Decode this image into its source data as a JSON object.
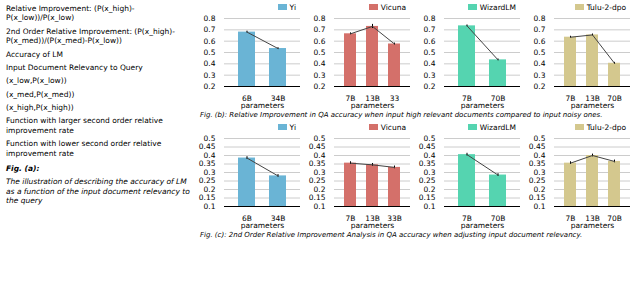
{
  "chart_data": [
    {
      "type": "text",
      "title": "Fig. (a):",
      "caption": "The illustration of describing the accuracy of LM as a function of the input document relevancy to the query",
      "annotations": [
        "Relative Improvement: (P(x_high)-P(x_low))/P(x_low)",
        "2nd Order Relative Improvement: (P(x_high)-P(x_med))/(P(x_med)-P(x_low))",
        "Accuracy of LM",
        "Input Document Relevancy to Query",
        "(x_low,P(x_low))",
        "(x_med,P(x_med))",
        "(x_high,P(x_high))",
        "Function with larger second order relative improvement rate",
        "Function with lower second order relative improvement rate"
      ]
    },
    {
      "type": "bar",
      "caption": "Fig. (b): Relative Improvement in QA accuracy when input high relevant documents compared to input noisy ones.",
      "categories": [
        "6B",
        "34B"
      ],
      "series": [
        {
          "name": "Yi",
          "color": "#6ab4d5",
          "values": [
            0.68,
            0.535
          ],
          "errors": [
            0.008,
            0.008
          ]
        }
      ],
      "x_label": "parameters",
      "ylim": [
        0.2,
        0.8
      ],
      "yticks": [
        0.2,
        0.3,
        0.4,
        0.5,
        0.6,
        0.7,
        0.8
      ],
      "grid": true,
      "legend": "upper right"
    },
    {
      "type": "bar",
      "categories": [
        "7B",
        "13B",
        "33"
      ],
      "series": [
        {
          "name": "Vicuna",
          "color": "#d4706a",
          "values": [
            0.665,
            0.73,
            0.575
          ],
          "errors": [
            0.008,
            0.018,
            0.008
          ]
        }
      ],
      "x_label": "parameters",
      "ylim": [
        0.2,
        0.8
      ],
      "yticks": [
        0.2,
        0.3,
        0.4,
        0.5,
        0.6,
        0.7,
        0.8
      ],
      "grid": true,
      "legend": "upper right"
    },
    {
      "type": "bar",
      "categories": [
        "7B",
        "70B"
      ],
      "series": [
        {
          "name": "WizardLM",
          "color": "#55d4b0",
          "values": [
            0.735,
            0.435
          ],
          "errors": [
            0.008,
            0.008
          ]
        }
      ],
      "x_label": "parameters",
      "ylim": [
        0.2,
        0.8
      ],
      "yticks": [
        0.2,
        0.3,
        0.4,
        0.5,
        0.6,
        0.7,
        0.8
      ],
      "grid": true,
      "legend": "upper right"
    },
    {
      "type": "bar",
      "categories": [
        "7B",
        "13B",
        "70B"
      ],
      "series": [
        {
          "name": "Tulu-2-dpo",
          "color": "#d4c88e",
          "values": [
            0.635,
            0.655,
            0.405
          ],
          "errors": [
            0.008,
            0.008,
            0.008
          ]
        }
      ],
      "x_label": "parameters",
      "ylim": [
        0.2,
        0.8
      ],
      "yticks": [
        0.2,
        0.3,
        0.4,
        0.5,
        0.6,
        0.7,
        0.8
      ],
      "grid": true,
      "legend": "upper right"
    },
    {
      "type": "bar",
      "caption": "Fig. (c): 2nd Order Relative Improvement Analysis in QA accuracy when adjusting input document relevancy.",
      "categories": [
        "6B",
        "34B"
      ],
      "series": [
        {
          "name": "Yi",
          "color": "#6ab4d5",
          "values": [
            0.385,
            0.28
          ],
          "errors": [
            0.008,
            0.008
          ]
        }
      ],
      "x_label": "parameters",
      "ylim": [
        0.1,
        0.5
      ],
      "yticks": [
        0.1,
        0.15,
        0.2,
        0.25,
        0.3,
        0.35,
        0.4,
        0.45,
        0.5
      ],
      "grid": true,
      "legend": "upper right"
    },
    {
      "type": "bar",
      "categories": [
        "7B",
        "13B",
        "33B"
      ],
      "series": [
        {
          "name": "Vicuna",
          "color": "#d4706a",
          "values": [
            0.355,
            0.345,
            0.33
          ],
          "errors": [
            0.008,
            0.008,
            0.008
          ]
        }
      ],
      "x_label": "parameters",
      "ylim": [
        0.1,
        0.5
      ],
      "yticks": [
        0.1,
        0.15,
        0.2,
        0.25,
        0.3,
        0.35,
        0.4,
        0.45,
        0.5
      ],
      "grid": true,
      "legend": "upper right"
    },
    {
      "type": "bar",
      "categories": [
        "7B",
        "70B"
      ],
      "series": [
        {
          "name": "WizardLM",
          "color": "#55d4b0",
          "values": [
            0.405,
            0.285
          ],
          "errors": [
            0.008,
            0.008
          ]
        }
      ],
      "x_label": "parameters",
      "ylim": [
        0.1,
        0.5
      ],
      "yticks": [
        0.1,
        0.15,
        0.2,
        0.25,
        0.3,
        0.35,
        0.4,
        0.45,
        0.5
      ],
      "grid": true,
      "legend": "upper right"
    },
    {
      "type": "bar",
      "categories": [
        "7B",
        "13B",
        "70B"
      ],
      "series": [
        {
          "name": "Tulu-2-dpo",
          "color": "#d4c88e",
          "values": [
            0.355,
            0.4,
            0.365
          ],
          "errors": [
            0.008,
            0.008,
            0.008
          ]
        }
      ],
      "x_label": "parameters",
      "ylim": [
        0.1,
        0.5
      ],
      "yticks": [
        0.1,
        0.15,
        0.2,
        0.25,
        0.3,
        0.35,
        0.4,
        0.45,
        0.5
      ],
      "grid": true,
      "legend": "upper right"
    }
  ]
}
